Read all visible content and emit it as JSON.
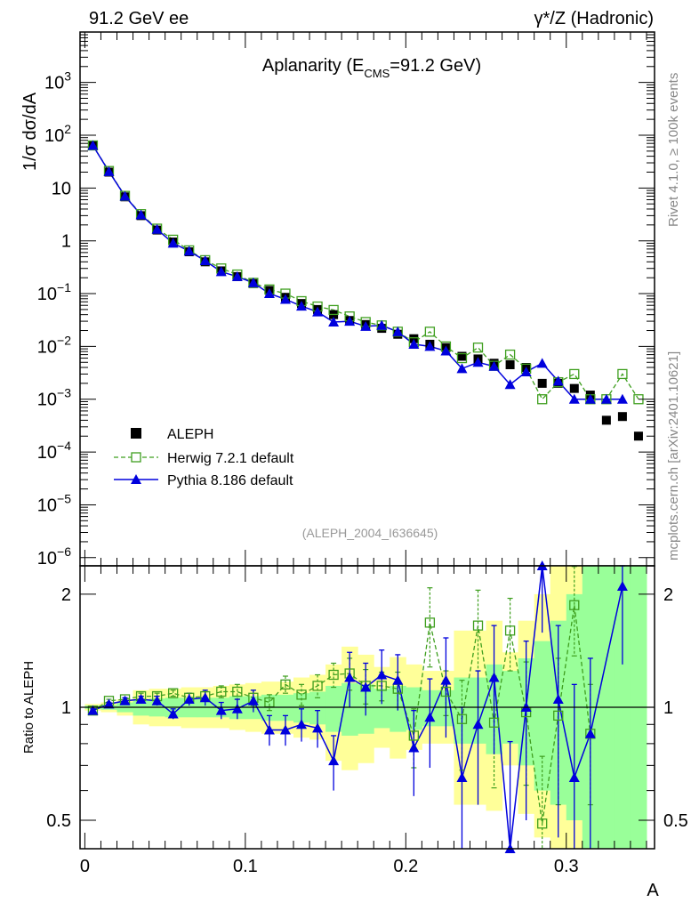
{
  "header": {
    "left": "91.2 GeV ee",
    "right": "γ*/Z (Hadronic)"
  },
  "side_labels": {
    "rivet": "Rivet 4.1.0, ≥ 100k events",
    "mcplots": "mcplots.cern.ch [arXiv:2401.10621]"
  },
  "chart_data": [
    {
      "type": "scatter",
      "panel": "main",
      "title_prefix": "Aplanarity (E",
      "title_sub": "CMS",
      "title_suffix": "=91.2 GeV)",
      "ylabel": "1/σ  dσ/dA",
      "yscale": "log",
      "ylim": [
        7e-07,
        9000
      ],
      "xlim": [
        -0.003,
        0.355
      ],
      "ytick_labels": [
        {
          "value": 1e-06,
          "base": "10",
          "exp": "−6"
        },
        {
          "value": 1e-05,
          "base": "10",
          "exp": "−5"
        },
        {
          "value": 0.0001,
          "base": "10",
          "exp": "−4"
        },
        {
          "value": 0.001,
          "base": "10",
          "exp": "−3"
        },
        {
          "value": 0.01,
          "base": "10",
          "exp": "−2"
        },
        {
          "value": 0.1,
          "base": "10",
          "exp": "−1"
        },
        {
          "value": 1,
          "base": "1",
          "exp": ""
        },
        {
          "value": 10,
          "base": "10",
          "exp": ""
        },
        {
          "value": 100,
          "base": "10",
          "exp": "2"
        },
        {
          "value": 1000,
          "base": "10",
          "exp": "3"
        }
      ],
      "watermark": "(ALEPH_2004_I636645)",
      "legend": {
        "position": "bottom-left",
        "entries": [
          "ALEPH",
          "Herwig 7.2.1 default",
          "Pythia 8.186 default"
        ]
      },
      "series": [
        {
          "name": "ALEPH",
          "style": "black-filled-square",
          "color": "#000000",
          "x": [
            0.005,
            0.015,
            0.025,
            0.035,
            0.045,
            0.055,
            0.065,
            0.075,
            0.085,
            0.095,
            0.105,
            0.115,
            0.125,
            0.135,
            0.145,
            0.155,
            0.165,
            0.175,
            0.185,
            0.195,
            0.205,
            0.215,
            0.225,
            0.235,
            0.245,
            0.255,
            0.265,
            0.275,
            0.285,
            0.295,
            0.305,
            0.315,
            0.325,
            0.335,
            0.345
          ],
          "y": [
            65,
            20,
            6.8,
            3.0,
            1.6,
            0.95,
            0.62,
            0.4,
            0.27,
            0.21,
            0.155,
            0.115,
            0.085,
            0.065,
            0.05,
            0.04,
            0.031,
            0.026,
            0.022,
            0.017,
            0.014,
            0.011,
            0.0095,
            0.0065,
            0.0058,
            0.0048,
            0.0045,
            0.004,
            0.002,
            0.002,
            0.0016,
            0.0012,
            0.0004,
            0.00047,
            0.0002
          ]
        },
        {
          "name": "Herwig 7.2.1 default",
          "style": "green-open-square-dashed",
          "color": "#3f9f1f",
          "x": [
            0.005,
            0.015,
            0.025,
            0.035,
            0.045,
            0.055,
            0.065,
            0.075,
            0.085,
            0.095,
            0.105,
            0.115,
            0.125,
            0.135,
            0.145,
            0.155,
            0.165,
            0.175,
            0.185,
            0.195,
            0.205,
            0.215,
            0.225,
            0.235,
            0.245,
            0.255,
            0.265,
            0.275,
            0.285,
            0.295,
            0.305,
            0.315,
            0.325,
            0.335,
            0.345
          ],
          "y": [
            64,
            21,
            7.1,
            3.2,
            1.7,
            1.05,
            0.66,
            0.43,
            0.3,
            0.23,
            0.16,
            0.12,
            0.1,
            0.072,
            0.057,
            0.049,
            0.037,
            0.029,
            0.025,
            0.019,
            0.012,
            0.019,
            0.01,
            0.006,
            0.0095,
            0.0043,
            0.007,
            0.0038,
            0.001,
            0.0021,
            0.003,
            0.001,
            0.001,
            0.003,
            0.001
          ]
        },
        {
          "name": "Pythia 8.186 default",
          "style": "blue-filled-triangle-solid",
          "color": "#0000dd",
          "x": [
            0.005,
            0.015,
            0.025,
            0.035,
            0.045,
            0.055,
            0.065,
            0.075,
            0.085,
            0.095,
            0.105,
            0.115,
            0.125,
            0.135,
            0.145,
            0.155,
            0.165,
            0.175,
            0.185,
            0.195,
            0.205,
            0.215,
            0.225,
            0.235,
            0.245,
            0.255,
            0.265,
            0.275,
            0.285,
            0.295,
            0.305,
            0.315,
            0.325,
            0.335
          ],
          "y": [
            64,
            20.5,
            7.0,
            3.1,
            1.65,
            0.9,
            0.64,
            0.42,
            0.26,
            0.21,
            0.16,
            0.1,
            0.078,
            0.058,
            0.045,
            0.029,
            0.03,
            0.024,
            0.025,
            0.019,
            0.011,
            0.01,
            0.0082,
            0.0038,
            0.005,
            0.0042,
            0.0019,
            0.0033,
            0.0048,
            0.0022,
            0.001,
            0.001,
            0.001,
            0.001
          ]
        }
      ]
    },
    {
      "type": "scatter",
      "panel": "ratio",
      "ylabel": "Ratio to ALEPH",
      "xlabel": "A",
      "yscale": "log",
      "ylim": [
        0.42,
        2.38
      ],
      "xlim": [
        -0.003,
        0.355
      ],
      "xticks": [
        0,
        0.1,
        0.2,
        0.3
      ],
      "xtick_labels": [
        "0",
        "0.1",
        "0.2",
        "0.3"
      ],
      "yticks": [
        0.5,
        1,
        2
      ],
      "ytick_labels": [
        "0.5",
        "1",
        "2"
      ],
      "bands": {
        "outer_color": "#ffff99",
        "inner_color": "#99ff99",
        "x_edges": [
          0,
          0.01,
          0.02,
          0.03,
          0.04,
          0.05,
          0.06,
          0.07,
          0.08,
          0.09,
          0.1,
          0.11,
          0.12,
          0.13,
          0.14,
          0.15,
          0.16,
          0.17,
          0.18,
          0.19,
          0.2,
          0.21,
          0.22,
          0.23,
          0.24,
          0.25,
          0.26,
          0.27,
          0.28,
          0.29,
          0.3,
          0.31,
          0.32,
          0.33,
          0.34,
          0.35
        ],
        "outer_low": [
          0.98,
          0.97,
          0.95,
          0.9,
          0.89,
          0.89,
          0.88,
          0.88,
          0.88,
          0.87,
          0.86,
          0.85,
          0.85,
          0.83,
          0.82,
          0.72,
          0.68,
          0.71,
          0.78,
          0.73,
          0.77,
          0.8,
          0.8,
          0.55,
          0.55,
          0.53,
          0.7,
          0.52,
          0.45,
          0.42,
          0.42,
          0.42,
          0.42,
          0.42,
          0.42
        ],
        "outer_high": [
          1.02,
          1.03,
          1.05,
          1.11,
          1.12,
          1.12,
          1.13,
          1.13,
          1.14,
          1.15,
          1.16,
          1.17,
          1.17,
          1.2,
          1.22,
          1.3,
          1.45,
          1.38,
          1.28,
          1.36,
          1.3,
          1.25,
          1.25,
          1.6,
          1.6,
          1.7,
          1.4,
          1.7,
          2.0,
          2.38,
          2.38,
          2.38,
          2.38,
          2.38,
          2.38
        ],
        "inner_low": [
          0.99,
          0.985,
          0.97,
          0.95,
          0.945,
          0.94,
          0.94,
          0.94,
          0.94,
          0.93,
          0.93,
          0.92,
          0.92,
          0.91,
          0.9,
          0.86,
          0.84,
          0.85,
          0.88,
          0.86,
          0.87,
          0.89,
          0.89,
          0.8,
          0.8,
          0.75,
          0.8,
          0.7,
          0.6,
          0.55,
          0.5,
          0.42,
          0.42,
          0.42,
          0.42
        ],
        "inner_high": [
          1.01,
          1.015,
          1.03,
          1.05,
          1.055,
          1.06,
          1.06,
          1.06,
          1.06,
          1.07,
          1.07,
          1.08,
          1.08,
          1.09,
          1.1,
          1.14,
          1.16,
          1.15,
          1.12,
          1.14,
          1.13,
          1.11,
          1.11,
          1.2,
          1.2,
          1.3,
          1.25,
          1.35,
          1.5,
          1.7,
          2.0,
          2.38,
          2.38,
          2.38,
          2.38
        ]
      },
      "series": [
        {
          "name": "Herwig 7.2.1 default",
          "color": "#3f9f1f",
          "x": [
            0.005,
            0.015,
            0.025,
            0.035,
            0.045,
            0.055,
            0.065,
            0.075,
            0.085,
            0.095,
            0.105,
            0.115,
            0.125,
            0.135,
            0.145,
            0.155,
            0.165,
            0.175,
            0.185,
            0.195,
            0.205,
            0.215,
            0.225,
            0.235,
            0.245,
            0.255,
            0.265,
            0.275,
            0.285,
            0.295,
            0.305,
            0.315
          ],
          "y": [
            0.98,
            1.04,
            1.05,
            1.07,
            1.07,
            1.09,
            1.06,
            1.07,
            1.1,
            1.1,
            1.06,
            1.03,
            1.15,
            1.08,
            1.14,
            1.22,
            1.23,
            1.14,
            1.14,
            1.12,
            0.84,
            1.68,
            1.1,
            0.93,
            1.65,
            0.91,
            1.6,
            0.97,
            0.49,
            0.95,
            1.87,
            0.85
          ],
          "err": [
            0.01,
            0.01,
            0.01,
            0.02,
            0.02,
            0.02,
            0.03,
            0.03,
            0.04,
            0.05,
            0.05,
            0.05,
            0.06,
            0.07,
            0.08,
            0.09,
            0.12,
            0.12,
            0.1,
            0.12,
            0.15,
            0.4,
            0.15,
            0.25,
            0.4,
            0.3,
            0.35,
            0.35,
            0.25,
            0.4,
            0.5,
            0.3
          ]
        },
        {
          "name": "Pythia 8.186 default",
          "color": "#0000dd",
          "x": [
            0.005,
            0.015,
            0.025,
            0.035,
            0.045,
            0.055,
            0.065,
            0.075,
            0.085,
            0.095,
            0.105,
            0.115,
            0.125,
            0.135,
            0.145,
            0.155,
            0.165,
            0.175,
            0.185,
            0.195,
            0.205,
            0.215,
            0.225,
            0.235,
            0.245,
            0.255,
            0.265,
            0.275,
            0.285,
            0.295,
            0.305,
            0.315,
            0.335
          ],
          "y": [
            0.98,
            1.02,
            1.04,
            1.05,
            1.04,
            0.96,
            1.05,
            1.06,
            0.98,
            0.99,
            1.04,
            0.87,
            0.87,
            0.9,
            0.88,
            0.72,
            1.2,
            1.13,
            1.22,
            1.18,
            0.78,
            0.94,
            1.18,
            0.65,
            0.9,
            1.2,
            0.41,
            1.0,
            2.38,
            1.05,
            0.65,
            0.85,
            2.1
          ],
          "err": [
            0.01,
            0.01,
            0.02,
            0.02,
            0.03,
            0.03,
            0.04,
            0.05,
            0.05,
            0.06,
            0.07,
            0.08,
            0.08,
            0.09,
            0.1,
            0.12,
            0.2,
            0.18,
            0.2,
            0.2,
            0.2,
            0.25,
            0.35,
            0.35,
            0.35,
            0.45,
            0.4,
            0.5,
            0.8,
            0.6,
            0.5,
            0.5,
            0.8
          ]
        }
      ]
    }
  ]
}
